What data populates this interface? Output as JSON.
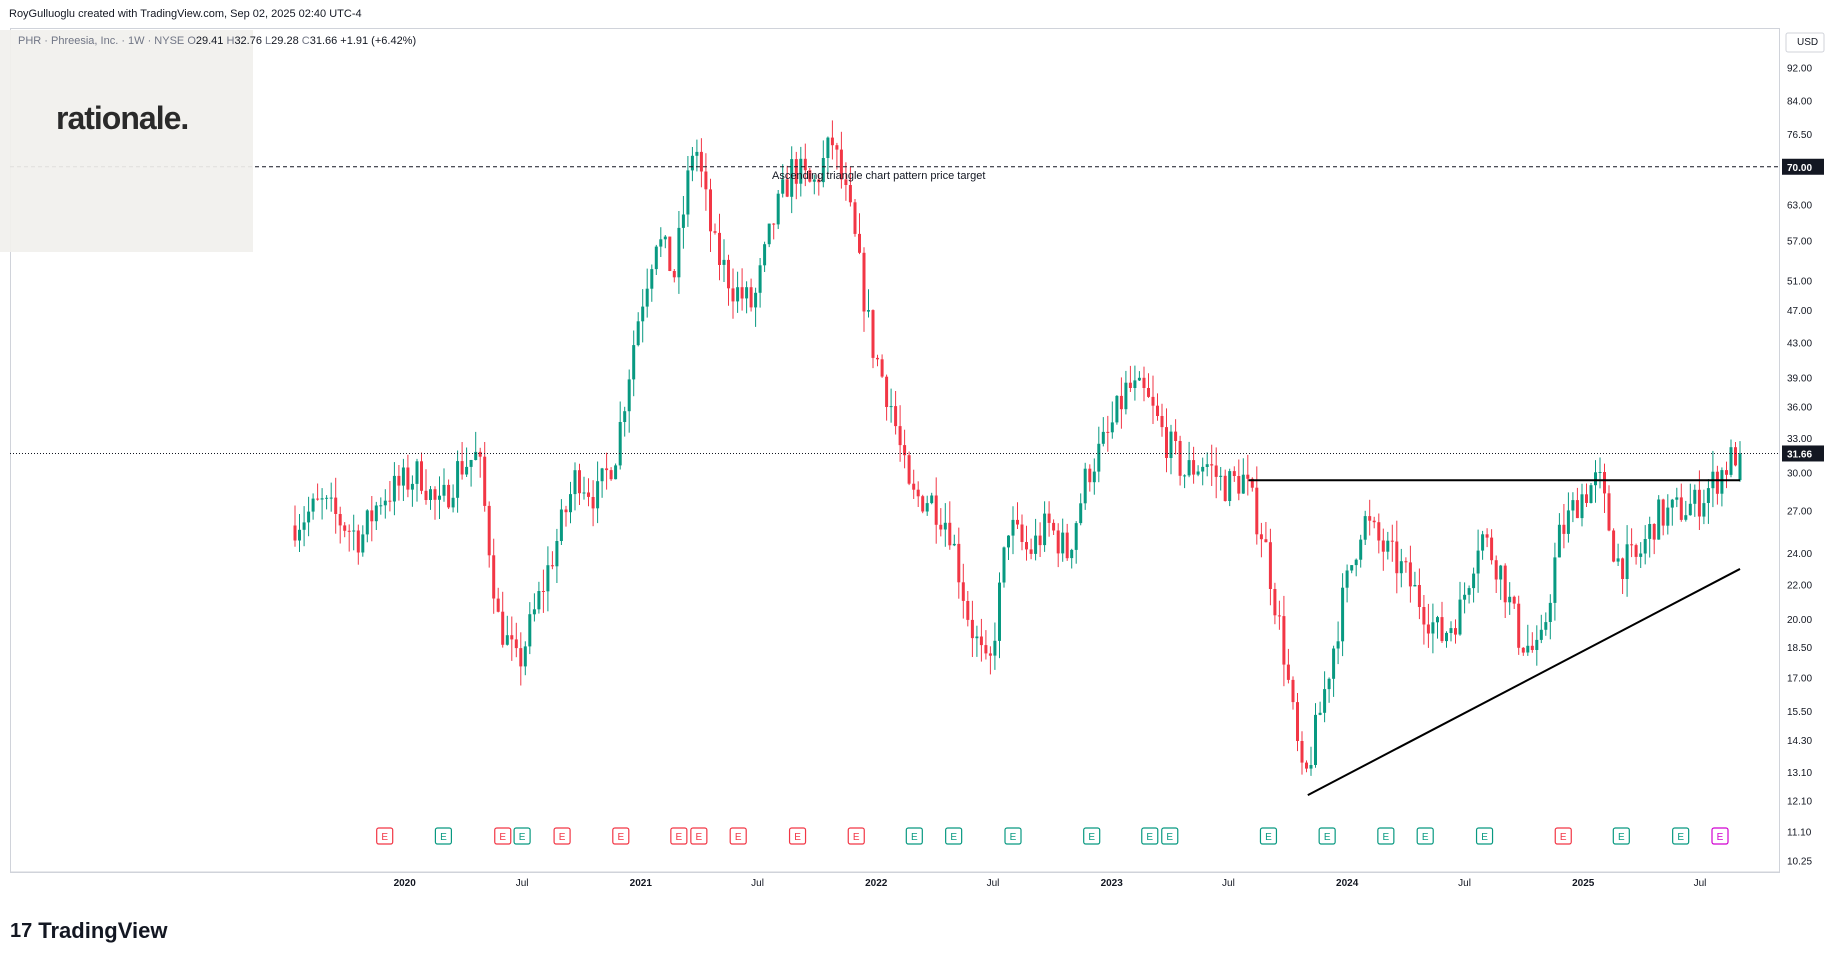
{
  "header": {
    "credit": "RoyGulluoglu created with TradingView.com, Sep 02, 2025 02:40 UTC-4"
  },
  "legend": {
    "symbol": "PHR · Phreesia, Inc. · 1W · NYSE",
    "open_label": "O",
    "open": "29.41",
    "high_label": "H",
    "high": "32.76",
    "low_label": "L",
    "low": "29.28",
    "close_label": "C",
    "close": "31.66",
    "change": "+1.91 (+6.42%)"
  },
  "branding": {
    "watermark": "rationale.",
    "footer_logo_mark": "17",
    "footer_logo_text": "TradingView"
  },
  "chart_data": {
    "type": "candlestick",
    "currency_label": "USD",
    "y_scale": "log",
    "ylim": [
      10.0,
      96.0
    ],
    "y_ticks": [
      10.25,
      11.1,
      12.1,
      13.1,
      14.3,
      15.5,
      17.0,
      18.5,
      20.0,
      22.0,
      24.0,
      27.0,
      30.0,
      33.0,
      36.0,
      39.0,
      43.0,
      47.0,
      51.0,
      57.0,
      63.0,
      70.0,
      76.5,
      84.0,
      92.0
    ],
    "y_tick_labels": [
      "10.25",
      "11.10",
      "12.10",
      "13.10",
      "14.30",
      "15.50",
      "17.00",
      "18.50",
      "20.00",
      "22.00",
      "24.00",
      "27.00",
      "30.00",
      "33.00",
      "36.00",
      "39.00",
      "43.00",
      "47.00",
      "51.00",
      "57.00",
      "63.00",
      "70.00",
      "76.50",
      "84.00",
      "92.00"
    ],
    "x_tick_labels": [
      {
        "label": "2020",
        "date": "2020-01"
      },
      {
        "label": "Jul",
        "date": "2020-07"
      },
      {
        "label": "2021",
        "date": "2021-01"
      },
      {
        "label": "Jul",
        "date": "2021-07"
      },
      {
        "label": "2022",
        "date": "2022-01"
      },
      {
        "label": "Jul",
        "date": "2022-07"
      },
      {
        "label": "2023",
        "date": "2023-01"
      },
      {
        "label": "Jul",
        "date": "2023-07"
      },
      {
        "label": "2024",
        "date": "2024-01"
      },
      {
        "label": "Jul",
        "date": "2024-07"
      },
      {
        "label": "2025",
        "date": "2025-01"
      },
      {
        "label": "Jul",
        "date": "2025-07"
      }
    ],
    "price_path": [
      [
        "2019-07",
        25.5
      ],
      [
        "2019-09",
        27.5
      ],
      [
        "2019-11",
        25.0
      ],
      [
        "2019-12",
        28.0
      ],
      [
        "2020-02",
        30.0
      ],
      [
        "2020-03",
        27.0
      ],
      [
        "2020-04",
        30.5
      ],
      [
        "2020-05",
        31.5
      ],
      [
        "2020-06",
        20.0
      ],
      [
        "2020-07",
        17.5
      ],
      [
        "2020-09",
        25.0
      ],
      [
        "2020-10",
        30.0
      ],
      [
        "2020-11",
        28.0
      ],
      [
        "2020-12",
        32.0
      ],
      [
        "2021-01",
        45.0
      ],
      [
        "2021-02",
        58.0
      ],
      [
        "2021-03",
        52.0
      ],
      [
        "2021-04",
        76.0
      ],
      [
        "2021-05",
        56.0
      ],
      [
        "2021-06",
        50.0
      ],
      [
        "2021-07",
        47.5
      ],
      [
        "2021-08",
        60.0
      ],
      [
        "2021-09",
        70.0
      ],
      [
        "2021-10",
        66.0
      ],
      [
        "2021-11",
        75.0
      ],
      [
        "2021-12",
        60.0
      ],
      [
        "2022-01",
        43.0
      ],
      [
        "2022-02",
        36.0
      ],
      [
        "2022-03",
        28.0
      ],
      [
        "2022-04",
        28.0
      ],
      [
        "2022-05",
        26.0
      ],
      [
        "2022-06",
        20.0
      ],
      [
        "2022-07",
        17.0
      ],
      [
        "2022-08",
        26.0
      ],
      [
        "2022-09",
        24.0
      ],
      [
        "2022-10",
        26.0
      ],
      [
        "2022-11",
        24.0
      ],
      [
        "2022-12",
        30.0
      ],
      [
        "2023-01",
        33.0
      ],
      [
        "2023-02",
        38.0
      ],
      [
        "2023-03",
        37.0
      ],
      [
        "2023-04",
        33.0
      ],
      [
        "2023-05",
        30.0
      ],
      [
        "2023-06",
        31.0
      ],
      [
        "2023-07",
        29.0
      ],
      [
        "2023-08",
        29.5
      ],
      [
        "2023-09",
        25.0
      ],
      [
        "2023-10",
        18.5
      ],
      [
        "2023-11",
        12.5
      ],
      [
        "2023-12",
        16.0
      ],
      [
        "2024-01",
        21.0
      ],
      [
        "2024-02",
        26.5
      ],
      [
        "2024-03",
        24.5
      ],
      [
        "2024-04",
        23.0
      ],
      [
        "2024-05",
        21.0
      ],
      [
        "2024-06",
        19.0
      ],
      [
        "2024-07",
        20.5
      ],
      [
        "2024-08",
        25.5
      ],
      [
        "2024-09",
        23.0
      ],
      [
        "2024-10",
        19.0
      ],
      [
        "2024-11",
        18.0
      ],
      [
        "2024-12",
        25.0
      ],
      [
        "2025-01",
        28.0
      ],
      [
        "2025-02",
        29.5
      ],
      [
        "2025-03",
        23.5
      ],
      [
        "2025-04",
        23.5
      ],
      [
        "2025-05",
        26.5
      ],
      [
        "2025-06",
        27.0
      ],
      [
        "2025-07",
        27.5
      ],
      [
        "2025-08",
        29.41
      ],
      [
        "2025-09",
        31.66
      ]
    ],
    "last_candle": {
      "date": "2025-09-01",
      "open": 29.41,
      "high": 32.76,
      "low": 29.28,
      "close": 31.66
    },
    "current_price_label": "31.66",
    "target_price_label": "70.00",
    "target_price": 70.0,
    "target_annotation": "Ascending triangle chart pattern price target",
    "triangle_resistance": {
      "start": "2023-08",
      "end": "2025-09",
      "price": 29.4
    },
    "triangle_support": {
      "start": "2023-11",
      "start_price": 12.3,
      "end": "2025-09",
      "end_price": 23.0
    },
    "earnings_markers": [
      {
        "date": "2019-12",
        "kind": "negative"
      },
      {
        "date": "2020-03",
        "kind": "positive"
      },
      {
        "date": "2020-06",
        "kind": "negative"
      },
      {
        "date": "2020-07",
        "kind": "positive"
      },
      {
        "date": "2020-09",
        "kind": "negative"
      },
      {
        "date": "2020-12",
        "kind": "negative"
      },
      {
        "date": "2021-03",
        "kind": "negative"
      },
      {
        "date": "2021-04",
        "kind": "negative"
      },
      {
        "date": "2021-06",
        "kind": "negative"
      },
      {
        "date": "2021-09",
        "kind": "negative"
      },
      {
        "date": "2021-12",
        "kind": "negative"
      },
      {
        "date": "2022-03",
        "kind": "positive"
      },
      {
        "date": "2022-05",
        "kind": "positive"
      },
      {
        "date": "2022-08",
        "kind": "positive"
      },
      {
        "date": "2022-12",
        "kind": "positive"
      },
      {
        "date": "2023-03",
        "kind": "positive"
      },
      {
        "date": "2023-04",
        "kind": "positive"
      },
      {
        "date": "2023-09",
        "kind": "positive"
      },
      {
        "date": "2023-12",
        "kind": "positive"
      },
      {
        "date": "2024-03",
        "kind": "positive"
      },
      {
        "date": "2024-05",
        "kind": "positive"
      },
      {
        "date": "2024-08",
        "kind": "positive"
      },
      {
        "date": "2024-12",
        "kind": "negative"
      },
      {
        "date": "2025-03",
        "kind": "positive"
      },
      {
        "date": "2025-06",
        "kind": "positive"
      },
      {
        "date": "2025-08",
        "kind": "upcoming"
      }
    ],
    "earnings_label": "E",
    "colors": {
      "up": "#089981",
      "down": "#f23645",
      "earn_neg": "#f23645",
      "earn_pos": "#089981",
      "earn_next": "#d100d1",
      "axis": "#131722",
      "grid": "#e0e3eb",
      "badge": "#131722"
    }
  }
}
